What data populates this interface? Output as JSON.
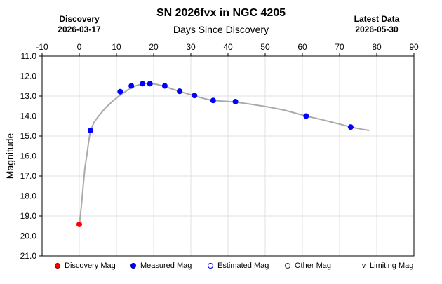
{
  "header": {
    "title": "SN 2026fvx in NGC 4205",
    "left_label": "Discovery",
    "left_date": "2026-03-17",
    "right_label": "Latest Data",
    "right_date": "2026-05-30"
  },
  "legend": {
    "items": [
      {
        "label": "Discovery Mag",
        "marker": "filled",
        "color": "#ff0000"
      },
      {
        "label": "Measured Mag",
        "marker": "filled",
        "color": "#0000ff"
      },
      {
        "label": "Estimated Mag",
        "marker": "open",
        "color": "#0000ff"
      },
      {
        "label": "Other Mag",
        "marker": "open",
        "color": "#333333"
      },
      {
        "label": "Limiting Mag",
        "marker": "v",
        "color": "#000000"
      }
    ]
  },
  "chart_data": {
    "type": "scatter",
    "title": "SN 2026fvx in NGC 4205",
    "xlabel": "Days Since Discovery",
    "ylabel": "Magnitude",
    "xlim": [
      -10,
      90
    ],
    "ylim": [
      21.0,
      11.0
    ],
    "y_inverted": true,
    "x_ticks": [
      -10,
      0,
      10,
      20,
      30,
      40,
      50,
      60,
      70,
      80,
      90
    ],
    "y_ticks": [
      "11.0",
      "12.0",
      "13.0",
      "14.0",
      "15.0",
      "16.0",
      "17.0",
      "18.0",
      "19.0",
      "20.0",
      "21.0"
    ],
    "grid": true,
    "legend_position": "bottom",
    "series": [
      {
        "name": "Discovery Mag",
        "color": "#ff0000",
        "points": [
          [
            0,
            19.42
          ]
        ]
      },
      {
        "name": "Measured Mag",
        "color": "#0000ff",
        "points": [
          [
            3,
            14.72
          ],
          [
            11,
            12.78
          ],
          [
            14,
            12.49
          ],
          [
            17,
            12.38
          ],
          [
            19,
            12.38
          ],
          [
            23,
            12.49
          ],
          [
            27,
            12.76
          ],
          [
            31,
            12.97
          ],
          [
            36,
            13.22
          ],
          [
            42,
            13.28
          ],
          [
            61,
            14.0
          ],
          [
            73,
            14.55
          ]
        ]
      }
    ],
    "fit_curve": {
      "color": "#aaaaaa",
      "points": [
        [
          0,
          19.5
        ],
        [
          0.5,
          18.6
        ],
        [
          1,
          17.6
        ],
        [
          1.5,
          16.6
        ],
        [
          2,
          16.0
        ],
        [
          2.5,
          15.3
        ],
        [
          3,
          14.72
        ],
        [
          4,
          14.3
        ],
        [
          5,
          14.05
        ],
        [
          7,
          13.6
        ],
        [
          9,
          13.25
        ],
        [
          11,
          12.95
        ],
        [
          13,
          12.7
        ],
        [
          15,
          12.5
        ],
        [
          17,
          12.38
        ],
        [
          19,
          12.37
        ],
        [
          21,
          12.42
        ],
        [
          23,
          12.52
        ],
        [
          25,
          12.65
        ],
        [
          27,
          12.77
        ],
        [
          29,
          12.88
        ],
        [
          31,
          12.99
        ],
        [
          33,
          13.1
        ],
        [
          35,
          13.19
        ],
        [
          37,
          13.24
        ],
        [
          40,
          13.27
        ],
        [
          42,
          13.3
        ],
        [
          45,
          13.38
        ],
        [
          50,
          13.52
        ],
        [
          55,
          13.7
        ],
        [
          61,
          14.0
        ],
        [
          65,
          14.17
        ],
        [
          70,
          14.4
        ],
        [
          73,
          14.55
        ],
        [
          76,
          14.66
        ],
        [
          78,
          14.72
        ]
      ]
    }
  }
}
